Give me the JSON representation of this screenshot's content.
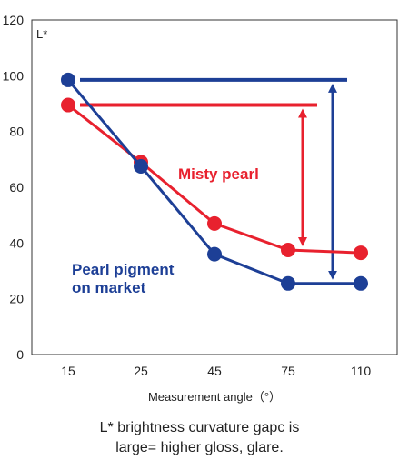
{
  "chart_data": {
    "type": "line",
    "ylabel": "L*",
    "xlabel": "Measurement angle（°）",
    "categories": [
      "15",
      "25",
      "45",
      "75",
      "110"
    ],
    "ylim": [
      0,
      120
    ],
    "yticks": [
      0,
      20,
      40,
      60,
      80,
      100,
      120
    ],
    "grid": false,
    "series": [
      {
        "name": "Misty pearl",
        "color": "#e8212e",
        "values": [
          89.5,
          69,
          47,
          37.5,
          36.5
        ],
        "label_lines": [
          "Misty pearl"
        ]
      },
      {
        "name": "Pearl pigment on market",
        "color": "#1d3f96",
        "values": [
          98.5,
          67.5,
          36,
          25.5,
          25.5
        ],
        "label_lines": [
          "Pearl pigment",
          "on market"
        ]
      }
    ],
    "annotations": [
      {
        "series": "Misty pearl",
        "range": [
          37.5,
          89.5
        ],
        "at_category": "75"
      },
      {
        "series": "Pearl pigment on market",
        "range": [
          25.5,
          98.5
        ],
        "at_category": "75"
      }
    ]
  },
  "caption": {
    "line1": "L* brightness curvature gapc is",
    "line2": "large= higher gloss, glare."
  }
}
